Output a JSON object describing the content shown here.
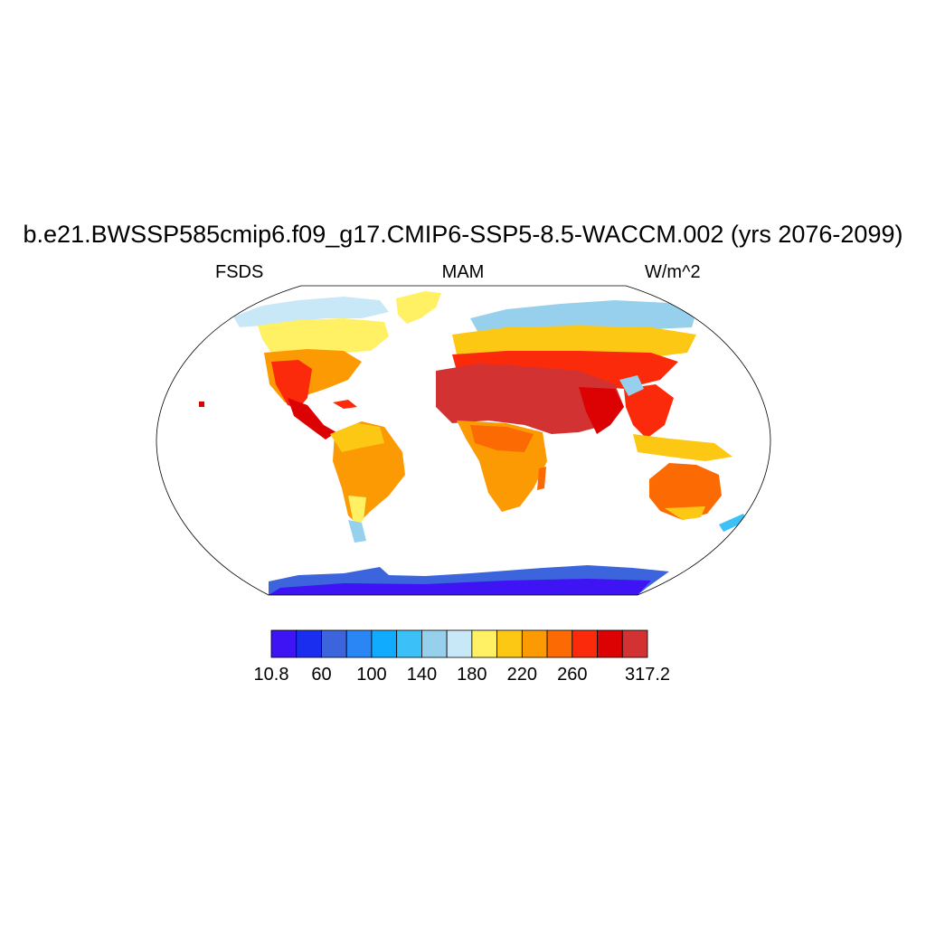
{
  "title": "b.e21.BWSSP585cmip6.f09_g17.CMIP6-SSP5-8.5-WACCM.002 (yrs 2076-2099)",
  "variable": "FSDS",
  "season": "MAM",
  "units": "W/m^2",
  "colorbar": {
    "colors": [
      "#3e14f5",
      "#1a2ef0",
      "#3c64dc",
      "#2a86f5",
      "#10aaff",
      "#3cc0f8",
      "#96d0ec",
      "#c8e8f8",
      "#fff064",
      "#fcc814",
      "#fc9a04",
      "#fc6a04",
      "#fa2a0a",
      "#dc0204",
      "#d23232"
    ],
    "labels": [
      {
        "text": "10.8",
        "index": 0
      },
      {
        "text": "60",
        "index": 2
      },
      {
        "text": "100",
        "index": 4
      },
      {
        "text": "140",
        "index": 6
      },
      {
        "text": "180",
        "index": 8
      },
      {
        "text": "220",
        "index": 10
      },
      {
        "text": "260",
        "index": 12
      },
      {
        "text": "317.2",
        "index": 15
      }
    ]
  }
}
